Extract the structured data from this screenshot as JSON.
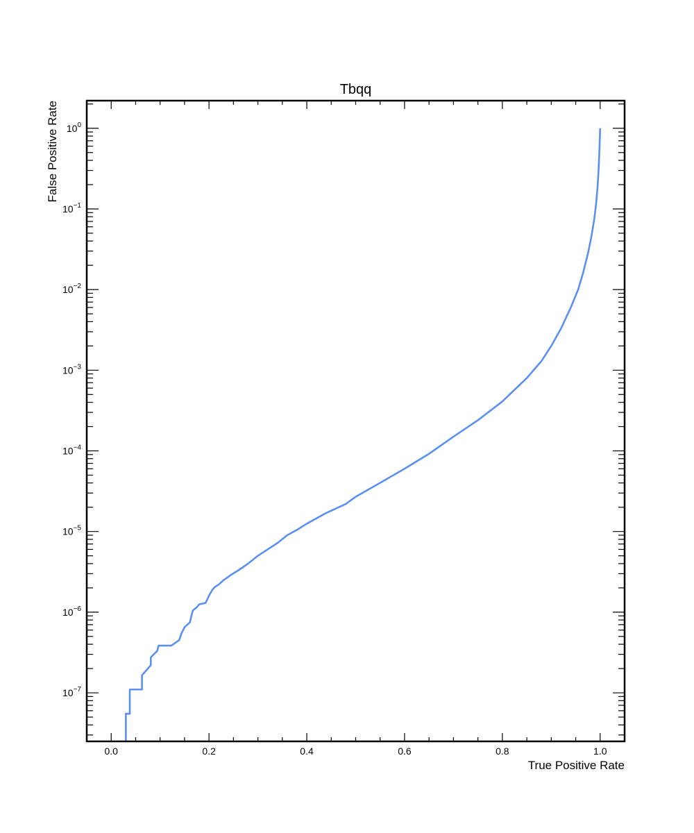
{
  "chart_data": {
    "type": "line",
    "title": "Tbqq",
    "xlabel": "True Positive Rate",
    "ylabel": "False Positive Rate",
    "xlim": [
      -0.05,
      1.05
    ],
    "ylim": [
      2.5e-08,
      2.2
    ],
    "yscale": "log",
    "xticks": [
      {
        "value": 0.0,
        "label": "0.0"
      },
      {
        "value": 0.2,
        "label": "0.2"
      },
      {
        "value": 0.4,
        "label": "0.4"
      },
      {
        "value": 0.6,
        "label": "0.6"
      },
      {
        "value": 0.8,
        "label": "0.8"
      },
      {
        "value": 1.0,
        "label": "1.0"
      }
    ],
    "yticks": [
      {
        "value": 1.0,
        "base": "10",
        "exp": "0"
      },
      {
        "value": 0.1,
        "base": "10",
        "exp": "−1"
      },
      {
        "value": 0.01,
        "base": "10",
        "exp": "−2"
      },
      {
        "value": 0.001,
        "base": "10",
        "exp": "−3"
      },
      {
        "value": 0.0001,
        "base": "10",
        "exp": "−4"
      },
      {
        "value": 1e-05,
        "base": "10",
        "exp": "−5"
      },
      {
        "value": 1e-06,
        "base": "10",
        "exp": "−6"
      },
      {
        "value": 1e-07,
        "base": "10",
        "exp": "−7"
      }
    ],
    "series": [
      {
        "name": "Tbqq",
        "color": "#5b8ff0",
        "x": [
          0.03,
          0.03,
          0.033,
          0.038,
          0.038,
          0.063,
          0.063,
          0.081,
          0.081,
          0.094,
          0.097,
          0.123,
          0.139,
          0.144,
          0.15,
          0.161,
          0.164,
          0.167,
          0.175,
          0.18,
          0.193,
          0.2,
          0.207,
          0.212,
          0.22,
          0.23,
          0.245,
          0.26,
          0.28,
          0.3,
          0.32,
          0.34,
          0.36,
          0.38,
          0.4,
          0.44,
          0.48,
          0.5,
          0.54,
          0.6,
          0.65,
          0.7,
          0.75,
          0.8,
          0.85,
          0.88,
          0.9,
          0.92,
          0.94,
          0.955,
          0.965,
          0.975,
          0.982,
          0.988,
          0.992,
          0.995,
          0.997,
          0.998,
          0.999,
          1.0
        ],
        "y": [
          2.5e-08,
          5.5e-08,
          5.5e-08,
          5.5e-08,
          1.1e-07,
          1.1e-07,
          1.65e-07,
          2.2e-07,
          2.75e-07,
          3.3e-07,
          3.85e-07,
          3.85e-07,
          4.5e-07,
          5.5e-07,
          6.5e-07,
          7.5e-07,
          9e-07,
          1.05e-06,
          1.15e-06,
          1.25e-06,
          1.3e-06,
          1.6e-06,
          1.9e-06,
          2.05e-06,
          2.2e-06,
          2.5e-06,
          2.9e-06,
          3.3e-06,
          4e-06,
          5e-06,
          6e-06,
          7.2e-06,
          9e-06,
          1.05e-05,
          1.25e-05,
          1.7e-05,
          2.2e-05,
          2.7e-05,
          3.7e-05,
          6e-05,
          9.2e-05,
          0.00015,
          0.00024,
          0.00041,
          0.0008,
          0.0013,
          0.002,
          0.0033,
          0.006,
          0.01,
          0.016,
          0.028,
          0.045,
          0.075,
          0.12,
          0.2,
          0.32,
          0.45,
          0.65,
          1.0
        ]
      }
    ]
  }
}
